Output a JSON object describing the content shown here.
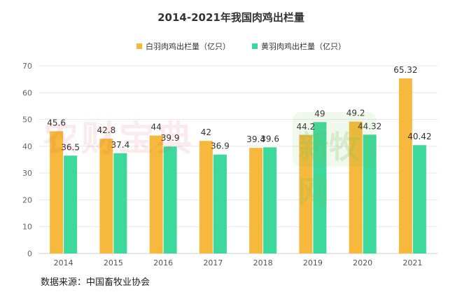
{
  "chart_data": {
    "type": "bar",
    "title": "2014-2021年我国肉鸡出栏量",
    "categories": [
      "2014",
      "2015",
      "2016",
      "2017",
      "2018",
      "2019",
      "2020",
      "2021"
    ],
    "series": [
      {
        "name": "白羽肉鸡出栏量（亿只）",
        "color": "#f7b93d",
        "values": [
          45.6,
          42.8,
          44,
          42,
          39.4,
          44.2,
          49.2,
          65.32
        ],
        "labels": [
          "45.6",
          "42.8",
          "44",
          "42",
          "39.4",
          "44.2",
          "49.2",
          "65.32"
        ]
      },
      {
        "name": "黄羽肉鸡出栏量（亿只）",
        "color": "#3dd89b",
        "values": [
          36.5,
          37.4,
          39.9,
          36.9,
          39.6,
          49,
          44.32,
          40.42
        ],
        "labels": [
          "36.5",
          "37.4",
          "39.9",
          "36.9",
          "39.6",
          "49",
          "44.32",
          "40.42"
        ]
      }
    ],
    "ylim": [
      0,
      70
    ],
    "yticks": [
      "0",
      "10",
      "20",
      "30",
      "40",
      "50",
      "60",
      "70"
    ],
    "grid": true,
    "legend": "top-center"
  },
  "watermarks": {
    "left": "农财宝典",
    "right": "新牧网"
  },
  "source": "数据来源：中国畜牧业协会"
}
